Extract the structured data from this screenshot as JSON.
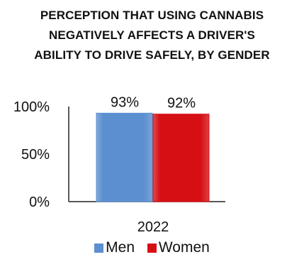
{
  "chart_data": {
    "type": "bar",
    "title_lines": [
      "PERCEPTION THAT USING CANNABIS",
      "NEGATIVELY AFFECTS A DRIVER'S",
      "ABILITY TO DRIVE SAFELY, BY GENDER"
    ],
    "categories": [
      "2022"
    ],
    "series": [
      {
        "name": "Men",
        "values": [
          93
        ],
        "label": "93%",
        "color": "#5b8fd0"
      },
      {
        "name": "Women",
        "values": [
          92
        ],
        "label": "92%",
        "color": "#d60f14"
      }
    ],
    "ylim": [
      0,
      100
    ],
    "yticks": [
      {
        "value": 0,
        "label": "0%"
      },
      {
        "value": 50,
        "label": "50%"
      },
      {
        "value": 100,
        "label": "100%"
      }
    ],
    "grid": false,
    "legend_position": "bottom"
  }
}
